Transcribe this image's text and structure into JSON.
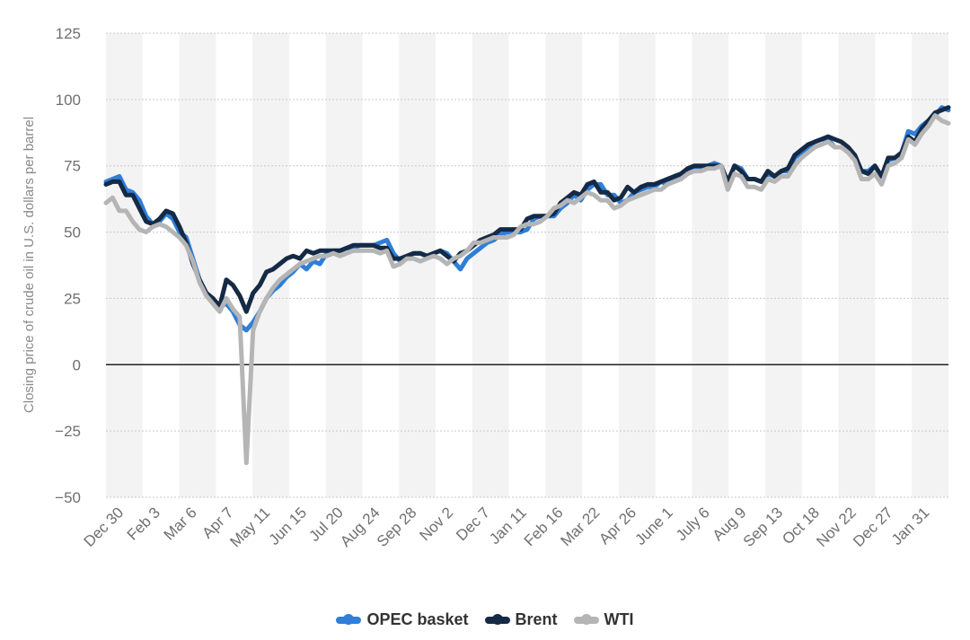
{
  "chart_data": {
    "type": "line",
    "title": "",
    "xlabel": "",
    "ylabel": "Closing price of crude oil in U.S. dollars per barrel",
    "ylim": [
      -50,
      125
    ],
    "yticks": [
      125,
      100,
      75,
      50,
      25,
      0,
      -25,
      -50
    ],
    "grid": true,
    "legend_position": "bottom",
    "x_tick_labels": [
      "Dec 30",
      "Feb 3",
      "Mar 6",
      "Apr 7",
      "May 11",
      "Jun 15",
      "Jul 20",
      "Aug 24",
      "Sep 28",
      "Nov 2",
      "Dec 7",
      "Jan 11",
      "Feb 16",
      "Mar 22",
      "Apr 26",
      "June 1",
      "July 6",
      "Aug 9",
      "Sep 13",
      "Oct 18",
      "Nov 22",
      "Dec 27",
      "Jan 31"
    ],
    "series": [
      {
        "name": "OPEC basket",
        "color": "#2f7ed8",
        "values": [
          69,
          70,
          71,
          66,
          65,
          62,
          56,
          53,
          54,
          57,
          55,
          50,
          48,
          40,
          32,
          27,
          24,
          22,
          23,
          20,
          15,
          13,
          16,
          20,
          25,
          28,
          30,
          33,
          35,
          38,
          36,
          39,
          38,
          42,
          43,
          43,
          44,
          44,
          45,
          45,
          45,
          46,
          47,
          42,
          39,
          40,
          42,
          42,
          41,
          42,
          43,
          42,
          39,
          36,
          40,
          42,
          44,
          46,
          47,
          49,
          50,
          50,
          50,
          51,
          55,
          56,
          56,
          56,
          59,
          61,
          64,
          62,
          66,
          68,
          68,
          64,
          64,
          61,
          62,
          65,
          66,
          67,
          67,
          69,
          68,
          70,
          71,
          73,
          74,
          74,
          75,
          76,
          75,
          68,
          75,
          74,
          70,
          70,
          69,
          72,
          71,
          73,
          73,
          78,
          80,
          82,
          84,
          85,
          85,
          82,
          82,
          81,
          79,
          73,
          73,
          75,
          71,
          77,
          78,
          80,
          88,
          87,
          90,
          92,
          94,
          97,
          96
        ]
      },
      {
        "name": "Brent",
        "color": "#152a45",
        "values": [
          68,
          69,
          69,
          64,
          64,
          59,
          54,
          53,
          55,
          58,
          57,
          52,
          46,
          38,
          32,
          27,
          25,
          22,
          32,
          30,
          26,
          20,
          27,
          30,
          35,
          36,
          38,
          40,
          41,
          40,
          43,
          42,
          43,
          43,
          43,
          43,
          44,
          45,
          45,
          45,
          45,
          44,
          44,
          40,
          40,
          41,
          42,
          42,
          41,
          42,
          43,
          41,
          39,
          42,
          43,
          45,
          47,
          48,
          49,
          51,
          51,
          51,
          51,
          55,
          56,
          56,
          56,
          57,
          61,
          63,
          65,
          64,
          68,
          69,
          65,
          65,
          62,
          63,
          67,
          65,
          67,
          68,
          68,
          69,
          70,
          71,
          72,
          74,
          75,
          75,
          75,
          75,
          75,
          69,
          75,
          73,
          70,
          70,
          69,
          73,
          71,
          73,
          74,
          79,
          81,
          83,
          84,
          85,
          86,
          85,
          84,
          82,
          79,
          73,
          72,
          75,
          71,
          78,
          78,
          80,
          86,
          84,
          89,
          92,
          95,
          96,
          97
        ]
      },
      {
        "name": "WTI",
        "color": "#b5b5b5",
        "values": [
          61,
          63,
          58,
          58,
          54,
          51,
          50,
          52,
          53,
          52,
          50,
          48,
          45,
          39,
          31,
          26,
          23,
          20,
          25,
          21,
          18,
          -37,
          13,
          20,
          25,
          29,
          32,
          34,
          36,
          38,
          39,
          40,
          41,
          41,
          42,
          41,
          42,
          43,
          43,
          43,
          43,
          42,
          43,
          37,
          38,
          40,
          40,
          39,
          40,
          41,
          40,
          38,
          40,
          41,
          43,
          46,
          46,
          47,
          48,
          48,
          48,
          49,
          52,
          53,
          53,
          54,
          56,
          59,
          60,
          62,
          61,
          63,
          65,
          64,
          62,
          62,
          59,
          60,
          62,
          63,
          64,
          65,
          66,
          66,
          68,
          69,
          70,
          72,
          73,
          73,
          74,
          74,
          75,
          66,
          72,
          71,
          67,
          67,
          66,
          70,
          69,
          71,
          71,
          75,
          78,
          80,
          82,
          83,
          84,
          82,
          82,
          80,
          77,
          70,
          70,
          72,
          68,
          75,
          76,
          78,
          85,
          83,
          87,
          90,
          94,
          92,
          91
        ]
      }
    ]
  }
}
